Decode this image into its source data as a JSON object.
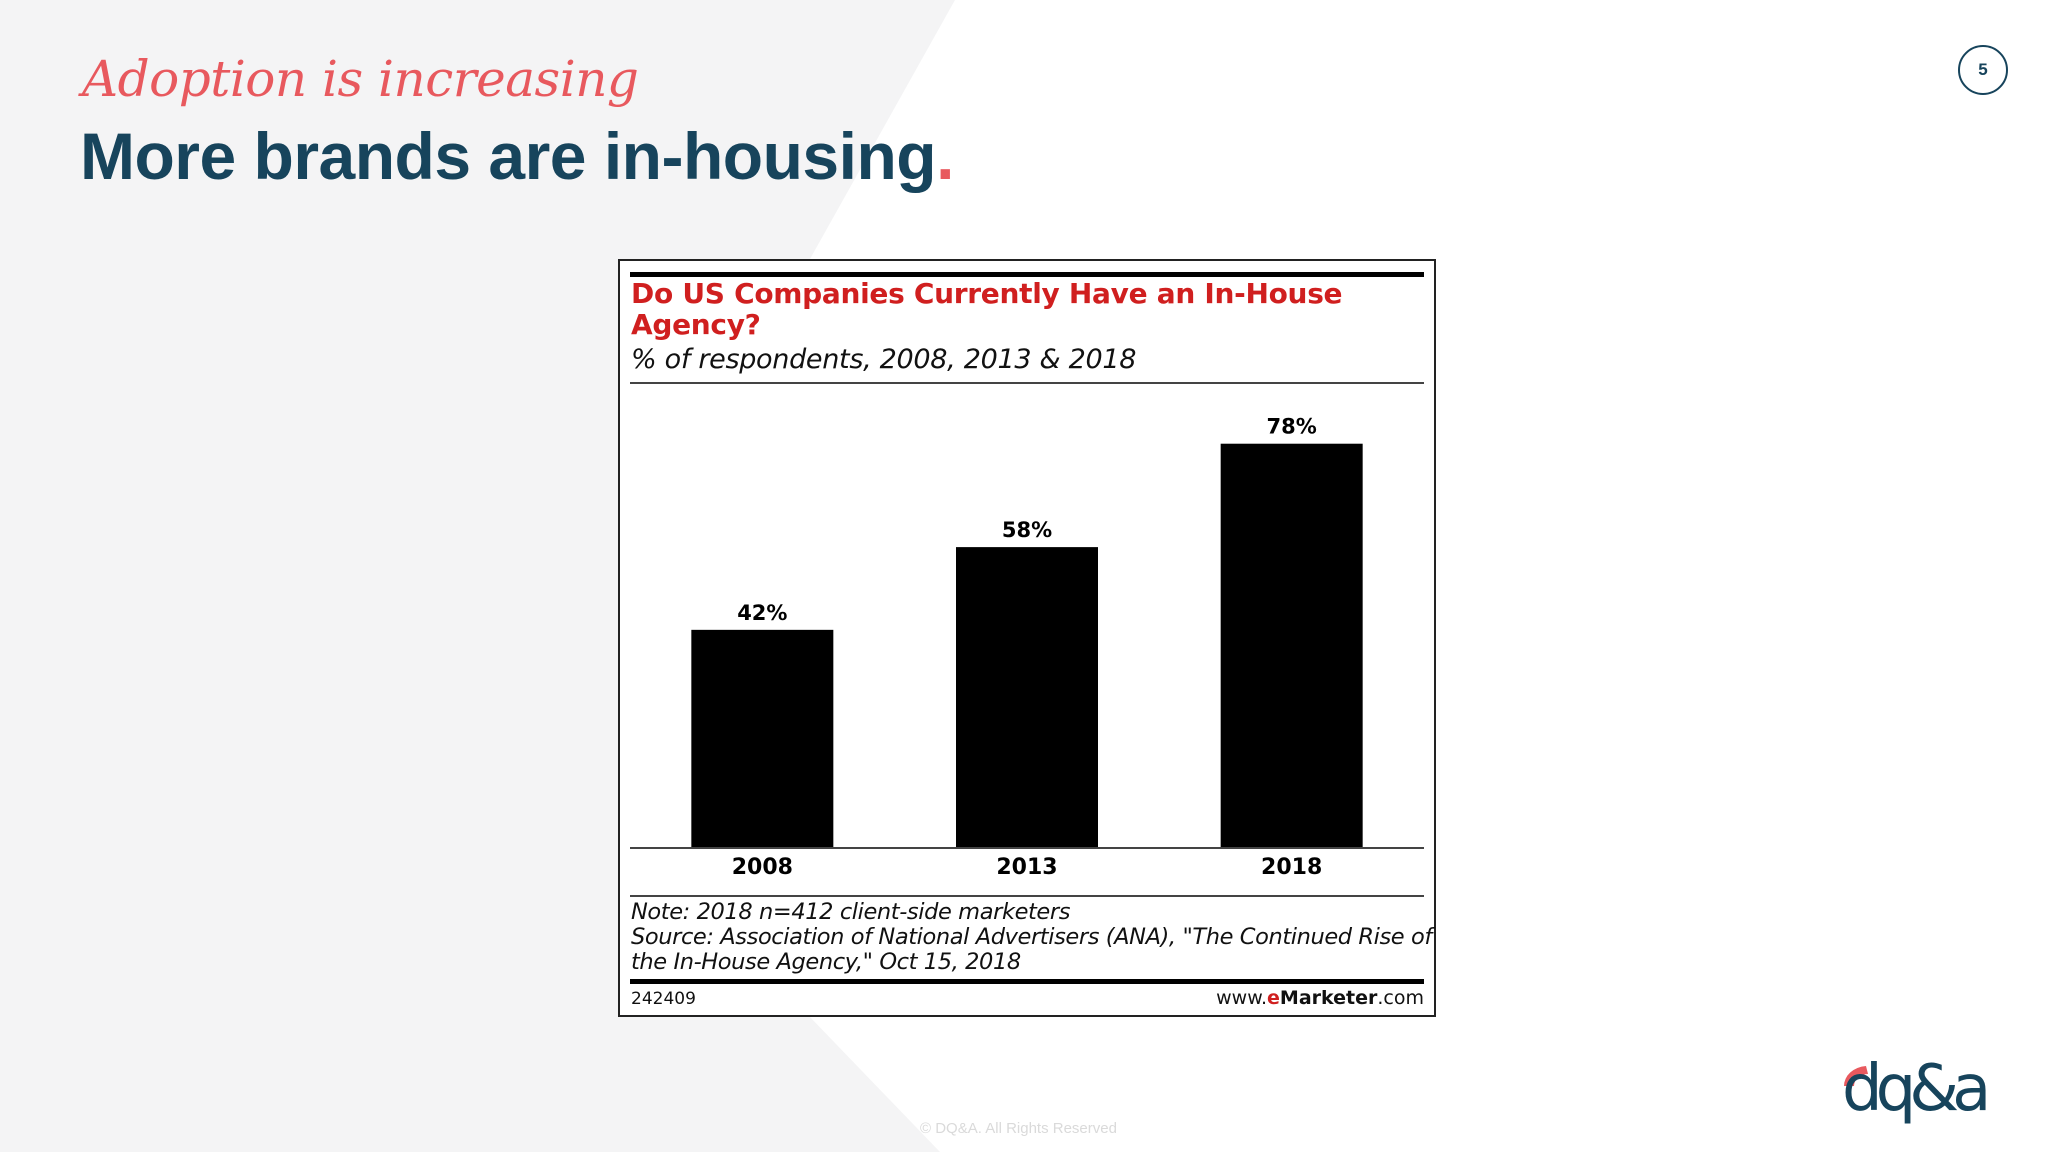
{
  "slide": {
    "subtitle": "Adoption is increasing",
    "title": "More brands are in-housing",
    "title_punctuation": ".",
    "page_number": "5",
    "copyright": "© DQ&A. All Rights Reserved",
    "logo_icon": "dqa-logo-icon",
    "colors": {
      "accent": "#e8595e",
      "navy": "#17445c",
      "panel": "#f4f4f5"
    }
  },
  "chart_card": {
    "title": "Do US Companies Currently Have an In-House Agency?",
    "subtitle": "% of respondents, 2008, 2013 & 2018",
    "note_lines": [
      "Note: 2018 n=412 client-side marketers",
      "Source: Association of National Advertisers (ANA), \"The Continued Rise of",
      "the In-House Agency,\" Oct 15, 2018"
    ],
    "chart_id": "242409",
    "brand_url_prefix": "www.",
    "brand_url_e": "e",
    "brand_url_name": "Marketer",
    "brand_url_suffix": ".com"
  },
  "chart_data": {
    "type": "bar",
    "title": "Do US Companies Currently Have an In-House Agency?",
    "subtitle": "% of respondents, 2008, 2013 & 2018",
    "categories": [
      "2008",
      "2013",
      "2018"
    ],
    "values": [
      42,
      58,
      78
    ],
    "data_labels": [
      "42%",
      "58%",
      "78%"
    ],
    "ylim": [
      0,
      88
    ],
    "grid": false,
    "legend": "none",
    "bar_color": "#000000",
    "title_color": "#d01f1f"
  }
}
